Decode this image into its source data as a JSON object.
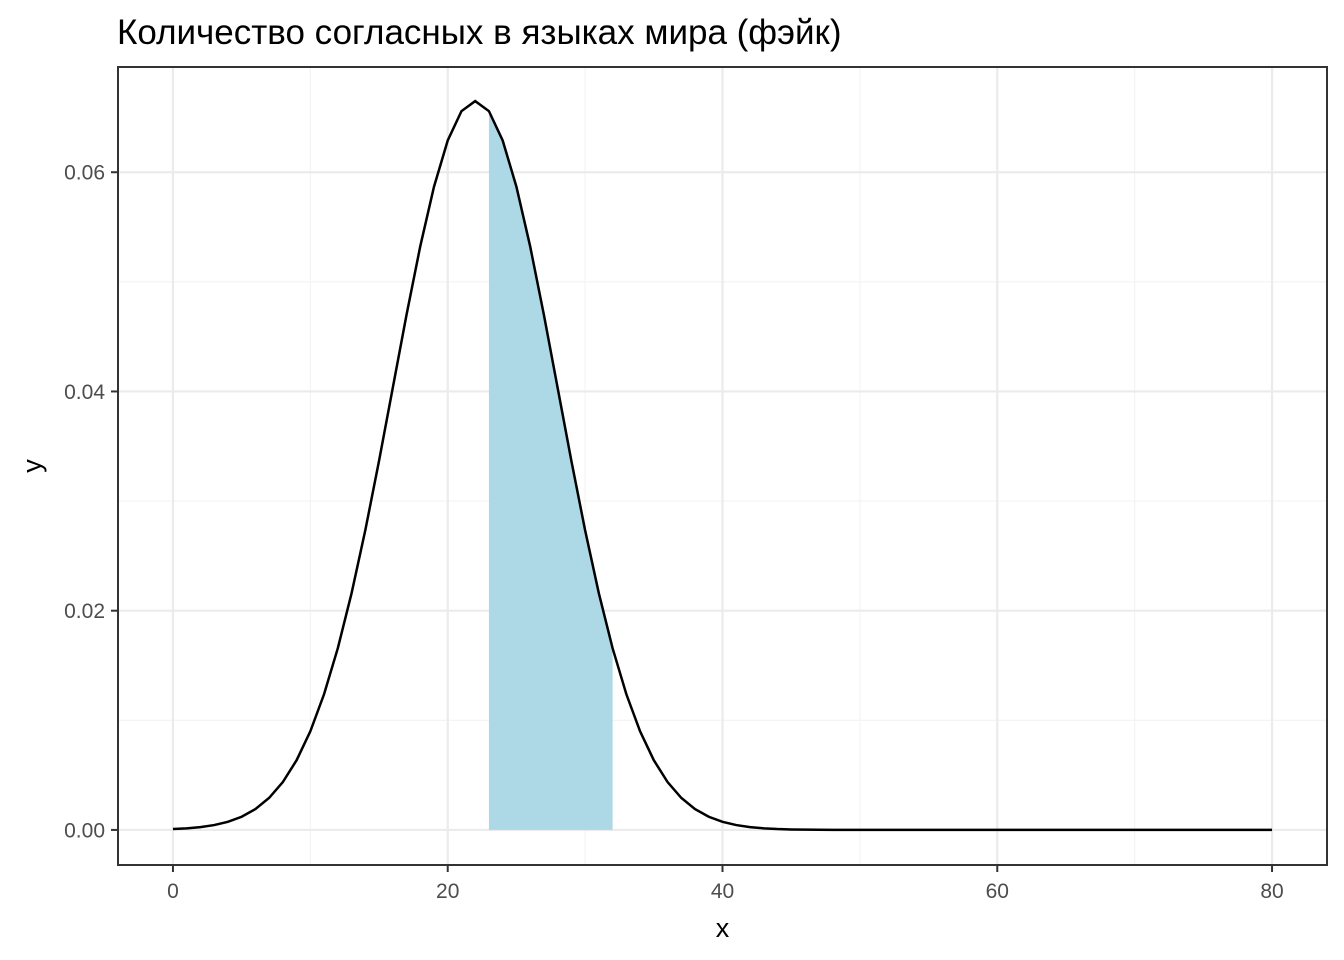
{
  "chart_data": {
    "type": "area",
    "title": "Количество согласных в языках мира (фэйк)",
    "xlabel": "x",
    "ylabel": "y",
    "xlim": [
      -4,
      84
    ],
    "ylim": [
      -0.0032,
      0.0696
    ],
    "x_ticks": [
      {
        "value": 0,
        "label": "0"
      },
      {
        "value": 20,
        "label": "20"
      },
      {
        "value": 40,
        "label": "40"
      },
      {
        "value": 60,
        "label": "60"
      },
      {
        "value": 80,
        "label": "80"
      }
    ],
    "y_ticks": [
      {
        "value": 0.0,
        "label": "0.00"
      },
      {
        "value": 0.02,
        "label": "0.02"
      },
      {
        "value": 0.04,
        "label": "0.04"
      },
      {
        "value": 0.06,
        "label": "0.06"
      }
    ],
    "grid": true,
    "curve": {
      "distribution": "normal",
      "mean": 22,
      "sd": 6,
      "x_range": [
        0,
        80
      ],
      "n_points": 81,
      "color": "#000000"
    },
    "shaded_region": {
      "x_from": 23,
      "x_to": 32,
      "color": "#add8e6"
    }
  }
}
